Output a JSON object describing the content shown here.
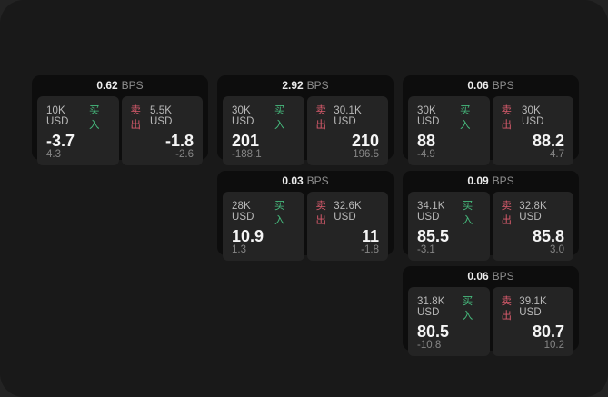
{
  "labels": {
    "bps_unit": "BPS",
    "buy": "买入",
    "sell": "卖出"
  },
  "colors": {
    "buy_green": "#46b97c",
    "sell_red": "#d65a6b",
    "surface_bg": "#191919",
    "card_bg": "#0d0d0d",
    "panel_bg": "#242424"
  },
  "cards": [
    {
      "col": 1,
      "row": 1,
      "bps": "0.62",
      "buy": {
        "size": "10K USD",
        "price": "-3.7",
        "delta": "4.3"
      },
      "sell": {
        "size": "5.5K USD",
        "price": "-1.8",
        "delta": "-2.6"
      }
    },
    {
      "col": 2,
      "row": 1,
      "bps": "2.92",
      "buy": {
        "size": "30K USD",
        "price": "201",
        "delta": "-188.1"
      },
      "sell": {
        "size": "30.1K USD",
        "price": "210",
        "delta": "196.5"
      }
    },
    {
      "col": 3,
      "row": 1,
      "bps": "0.06",
      "buy": {
        "size": "30K USD",
        "price": "88",
        "delta": "-4.9"
      },
      "sell": {
        "size": "30K USD",
        "price": "88.2",
        "delta": "4.7"
      }
    },
    {
      "col": 2,
      "row": 2,
      "bps": "0.03",
      "buy": {
        "size": "28K USD",
        "price": "10.9",
        "delta": "1.3"
      },
      "sell": {
        "size": "32.6K USD",
        "price": "11",
        "delta": "-1.8"
      }
    },
    {
      "col": 3,
      "row": 2,
      "bps": "0.09",
      "buy": {
        "size": "34.1K USD",
        "price": "85.5",
        "delta": "-3.1"
      },
      "sell": {
        "size": "32.8K USD",
        "price": "85.8",
        "delta": "3.0"
      }
    },
    {
      "col": 3,
      "row": 3,
      "bps": "0.06",
      "buy": {
        "size": "31.8K USD",
        "price": "80.5",
        "delta": "-10.8"
      },
      "sell": {
        "size": "39.1K USD",
        "price": "80.7",
        "delta": "10.2"
      }
    }
  ]
}
